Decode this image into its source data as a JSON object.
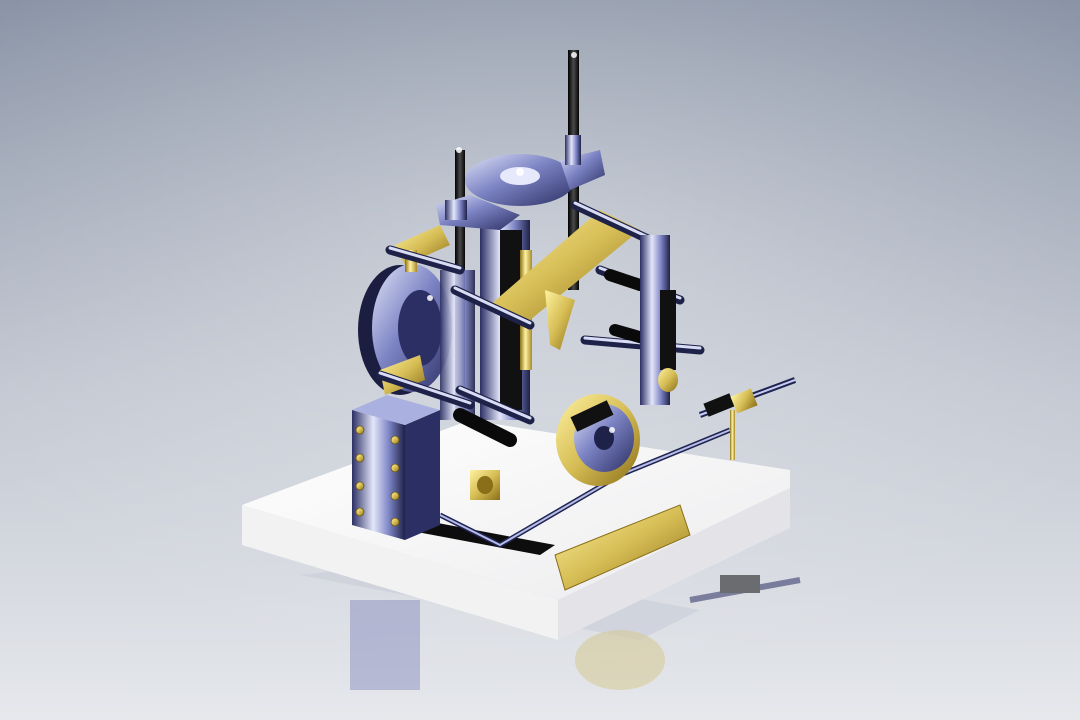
{
  "scene": {
    "subject": "engine-model-render",
    "colors": {
      "background_top": "#8a94a6",
      "background_mid": "#c9cdd6",
      "background_floor": "#e8eaee",
      "base": "#fbfbfb",
      "chrome_light": "#d8dcf2",
      "chrome_mid": "#7d84c4",
      "chrome_dark": "#2b2f63",
      "brass_light": "#fff2a0",
      "brass_mid": "#d6bd55",
      "brass_dark": "#8a6f18",
      "black_part": "#111111"
    }
  },
  "plaque": {
    "lines": [
      "",
      "",
      "",
      ""
    ]
  }
}
